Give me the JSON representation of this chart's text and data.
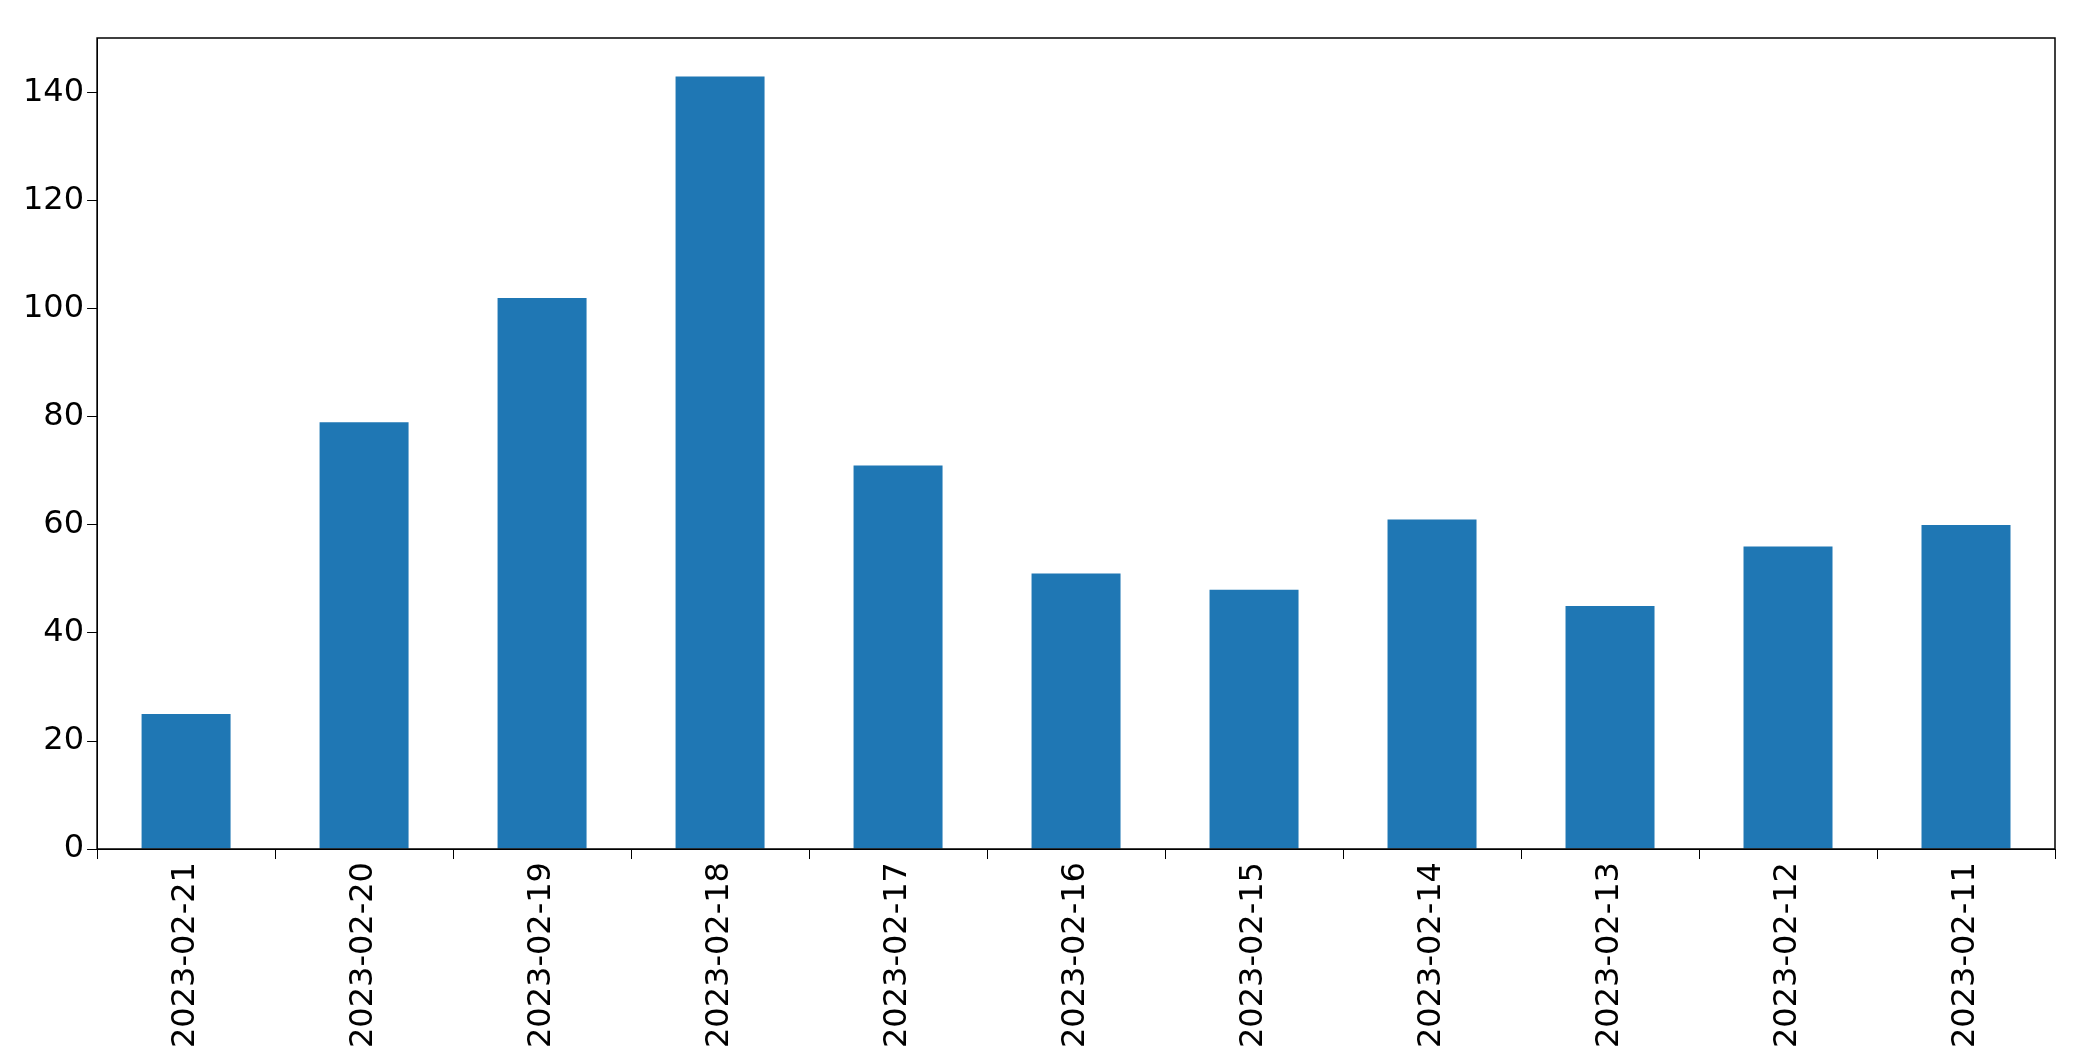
{
  "chart_data": {
    "type": "bar",
    "categories": [
      "2023-02-21",
      "2023-02-20",
      "2023-02-19",
      "2023-02-18",
      "2023-02-17",
      "2023-02-16",
      "2023-02-15",
      "2023-02-14",
      "2023-02-13",
      "2023-02-12",
      "2023-02-11"
    ],
    "values": [
      25,
      79,
      102,
      143,
      71,
      51,
      48,
      61,
      45,
      56,
      60
    ],
    "color": "#1f77b4",
    "ylim": [
      0,
      150.15
    ],
    "yticks": [
      0,
      20,
      40,
      60,
      80,
      100,
      120,
      140
    ],
    "grid": false,
    "legend": false
  }
}
